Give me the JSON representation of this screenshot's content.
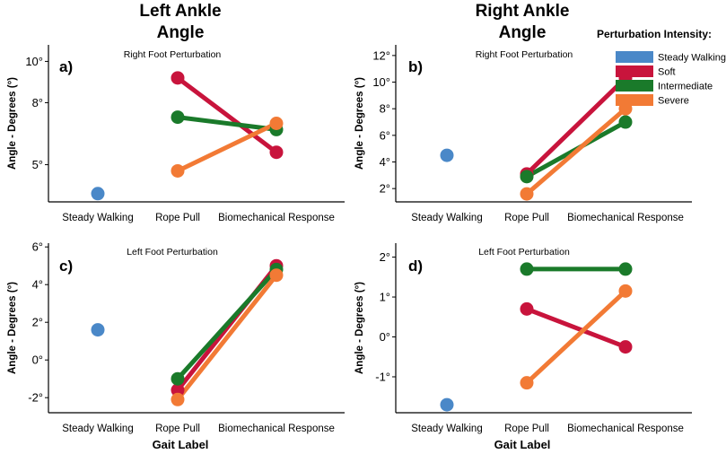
{
  "figure": {
    "left_title_line1": "Left Ankle",
    "left_title_line2": "Angle",
    "right_title_line1": "Right Ankle",
    "right_title_line2": "Angle",
    "xlabel": "Gait Label"
  },
  "legend": {
    "title": "Perturbation Intensity:",
    "items": [
      {
        "label": "Steady Walking",
        "color": "#4a88c8"
      },
      {
        "label": "Soft",
        "color": "#c8143c"
      },
      {
        "label": "Intermediate",
        "color": "#1a7a2a"
      },
      {
        "label": "Severe",
        "color": "#f27a35"
      }
    ]
  },
  "chart_data": [
    {
      "type": "line",
      "panel": "a)",
      "title": "Right Foot Perturbation",
      "ylabel": "Angle - Degrees (°)",
      "ylim": [
        3.2,
        10.8
      ],
      "yticks": [
        5,
        8,
        10
      ],
      "yticklabels": [
        "5°",
        "8°",
        "10°"
      ],
      "categories": [
        "Steady Walking",
        "Rope Pull",
        "Biomechanical Response"
      ],
      "steady_walking": 3.6,
      "series": [
        {
          "name": "Soft",
          "values": [
            null,
            9.2,
            5.6
          ]
        },
        {
          "name": "Intermediate",
          "values": [
            null,
            7.3,
            6.7
          ]
        },
        {
          "name": "Severe",
          "values": [
            null,
            4.7,
            7.0
          ]
        }
      ]
    },
    {
      "type": "line",
      "panel": "b)",
      "title": "Right Foot Perturbation",
      "ylabel": "Angle - Degrees (°)",
      "ylim": [
        1.0,
        12.8
      ],
      "yticks": [
        2,
        4,
        6,
        8,
        10,
        12
      ],
      "yticklabels": [
        "2°",
        "4°",
        "6°",
        "8°",
        "10°",
        "12°"
      ],
      "categories": [
        "Steady Walking",
        "Rope Pull",
        "Biomechanical Response"
      ],
      "steady_walking": 4.5,
      "series": [
        {
          "name": "Soft",
          "values": [
            null,
            3.1,
            10.3
          ]
        },
        {
          "name": "Intermediate",
          "values": [
            null,
            2.9,
            7.0
          ]
        },
        {
          "name": "Severe",
          "values": [
            null,
            1.6,
            8.0
          ]
        }
      ]
    },
    {
      "type": "line",
      "panel": "c)",
      "title": "Left Foot Perturbation",
      "ylabel": "Angle - Degrees (°)",
      "ylim": [
        -2.8,
        6.2
      ],
      "yticks": [
        -2,
        0,
        2,
        4,
        6
      ],
      "yticklabels": [
        "-2°",
        "0°",
        "2°",
        "4°",
        "6°"
      ],
      "categories": [
        "Steady Walking",
        "Rope Pull",
        "Biomechanical Response"
      ],
      "steady_walking": 1.6,
      "series": [
        {
          "name": "Soft",
          "values": [
            null,
            -1.6,
            5.0
          ]
        },
        {
          "name": "Intermediate",
          "values": [
            null,
            -1.0,
            4.8
          ]
        },
        {
          "name": "Severe",
          "values": [
            null,
            -2.1,
            4.5
          ]
        }
      ]
    },
    {
      "type": "line",
      "panel": "d)",
      "title": "Left Foot Perturbation",
      "ylabel": "Angle - Degrees (°)",
      "ylim": [
        -1.9,
        2.35
      ],
      "yticks": [
        -1,
        0,
        1,
        2
      ],
      "yticklabels": [
        "-1°",
        "0°",
        "1°",
        "2°"
      ],
      "categories": [
        "Steady Walking",
        "Rope Pull",
        "Biomechanical Response"
      ],
      "steady_walking": -1.7,
      "series": [
        {
          "name": "Soft",
          "values": [
            null,
            0.7,
            -0.25
          ]
        },
        {
          "name": "Intermediate",
          "values": [
            null,
            1.7,
            1.7
          ]
        },
        {
          "name": "Severe",
          "values": [
            null,
            -1.15,
            1.15
          ]
        }
      ]
    }
  ]
}
